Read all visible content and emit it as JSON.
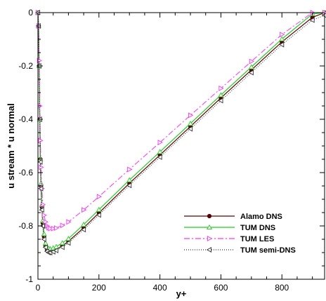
{
  "chart_data": {
    "type": "line",
    "title": "",
    "xlabel": "y+",
    "ylabel": "u stream * u normal",
    "xlim": [
      0,
      940
    ],
    "ylim": [
      -1,
      0
    ],
    "xticks": [
      0,
      200,
      400,
      600,
      800
    ],
    "yticks": [
      0,
      -0.2,
      -0.4,
      -0.6,
      -0.8,
      -1
    ],
    "xtick_labels": [
      "0",
      "200",
      "400",
      "600",
      "800"
    ],
    "ytick_labels": [
      "0",
      "-0.2",
      "-0.4",
      "-0.6",
      "-0.8",
      "-1"
    ],
    "grid": false,
    "legend_position": "bottom-right",
    "series": [
      {
        "name": "Alamo DNS",
        "color": "#5a0000",
        "line": "solid",
        "marker": "circle-filled",
        "x": [
          0,
          2,
          4,
          6,
          8,
          10,
          13,
          16,
          20,
          25,
          30,
          35,
          40,
          50,
          60,
          80,
          100,
          150,
          200,
          300,
          400,
          500,
          600,
          700,
          800,
          900,
          940
        ],
        "y": [
          0,
          -0.05,
          -0.2,
          -0.4,
          -0.55,
          -0.65,
          -0.73,
          -0.79,
          -0.84,
          -0.875,
          -0.89,
          -0.895,
          -0.895,
          -0.893,
          -0.888,
          -0.875,
          -0.858,
          -0.807,
          -0.751,
          -0.64,
          -0.534,
          -0.427,
          -0.32,
          -0.215,
          -0.11,
          -0.018,
          0
        ]
      },
      {
        "name": "TUM DNS",
        "color": "#22cc22",
        "line": "solid",
        "marker": "triangle-up-open",
        "x": [
          0,
          2,
          4,
          6,
          8,
          10,
          13,
          16,
          20,
          25,
          30,
          35,
          40,
          50,
          60,
          80,
          100,
          150,
          200,
          300,
          400,
          500,
          600,
          700,
          800,
          900,
          940
        ],
        "y": [
          0,
          -0.05,
          -0.2,
          -0.4,
          -0.55,
          -0.64,
          -0.72,
          -0.78,
          -0.83,
          -0.865,
          -0.88,
          -0.885,
          -0.886,
          -0.883,
          -0.878,
          -0.864,
          -0.848,
          -0.795,
          -0.739,
          -0.628,
          -0.522,
          -0.416,
          -0.309,
          -0.204,
          -0.099,
          -0.005,
          0
        ]
      },
      {
        "name": "TUM LES",
        "color": "#ff33ff",
        "line": "dashdot",
        "marker": "triangle-right-open",
        "x": [
          0,
          2,
          4,
          6,
          8,
          10,
          13,
          16,
          20,
          25,
          30,
          35,
          40,
          50,
          60,
          80,
          100,
          150,
          200,
          300,
          400,
          500,
          600,
          700,
          800,
          900,
          940
        ],
        "y": [
          0,
          -0.05,
          -0.18,
          -0.35,
          -0.48,
          -0.58,
          -0.66,
          -0.72,
          -0.76,
          -0.785,
          -0.8,
          -0.807,
          -0.81,
          -0.81,
          -0.808,
          -0.798,
          -0.785,
          -0.74,
          -0.69,
          -0.588,
          -0.487,
          -0.385,
          -0.284,
          -0.183,
          -0.082,
          0,
          0
        ]
      },
      {
        "name": "TUM semi-DNS",
        "color": "#333333",
        "line": "dotted",
        "marker": "triangle-left-open",
        "x": [
          0,
          2,
          4,
          6,
          8,
          10,
          13,
          16,
          20,
          25,
          30,
          35,
          40,
          50,
          60,
          80,
          100,
          150,
          200,
          300,
          400,
          500,
          600,
          700,
          800,
          900,
          940
        ],
        "y": [
          0,
          -0.05,
          -0.2,
          -0.4,
          -0.56,
          -0.66,
          -0.74,
          -0.8,
          -0.85,
          -0.88,
          -0.895,
          -0.9,
          -0.9,
          -0.897,
          -0.892,
          -0.88,
          -0.864,
          -0.814,
          -0.759,
          -0.648,
          -0.542,
          -0.436,
          -0.33,
          -0.225,
          -0.12,
          -0.028,
          -0.01
        ]
      }
    ]
  }
}
